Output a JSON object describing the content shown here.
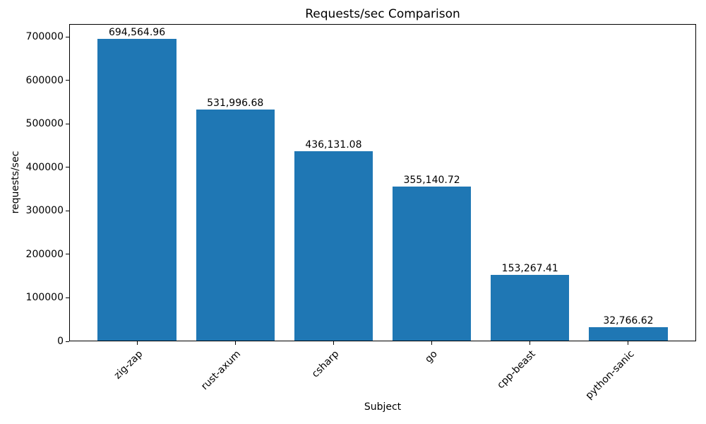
{
  "chart_data": {
    "type": "bar",
    "title": "Requests/sec Comparison",
    "xlabel": "Subject",
    "ylabel": "requests/sec",
    "categories": [
      "zig-zap",
      "rust-axum",
      "csharp",
      "go",
      "cpp-beast",
      "python-sanic"
    ],
    "values": [
      694564.96,
      531996.68,
      436131.08,
      355140.72,
      153267.41,
      32766.62
    ],
    "value_labels": [
      "694,564.96",
      "531,996.68",
      "436,131.08",
      "355,140.72",
      "153,267.41",
      "32,766.62"
    ],
    "yticks": [
      0,
      100000,
      200000,
      300000,
      400000,
      500000,
      600000,
      700000
    ],
    "ytick_labels": [
      "0",
      "100000",
      "200000",
      "300000",
      "400000",
      "500000",
      "600000",
      "700000"
    ],
    "ylim": [
      0,
      729293
    ],
    "xlim": [
      -0.69,
      5.69
    ],
    "bar_width": 0.8,
    "bar_color": "#1f77b4",
    "text_color": "#000000",
    "grid": false,
    "legend": null
  }
}
